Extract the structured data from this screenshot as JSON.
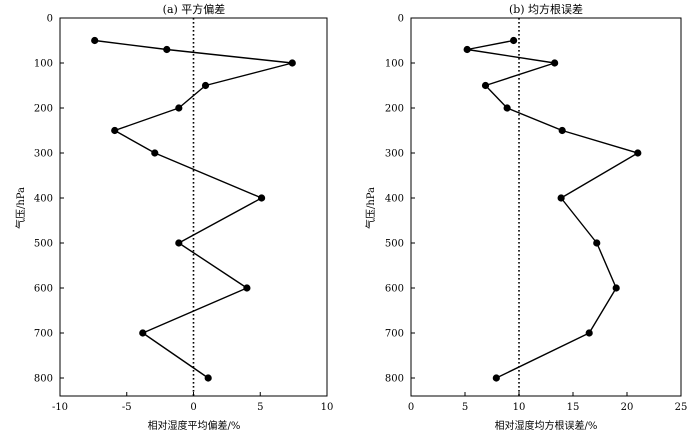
{
  "chart_data": [
    {
      "type": "line",
      "title": "(a) 平方偏差",
      "xlabel": "相对湿度平均偏差/%",
      "ylabel": "气压/hPa",
      "xlim": [
        -10,
        10
      ],
      "ylim": [
        0,
        840
      ],
      "y_inverted": true,
      "xticks": [
        -10,
        -5,
        0,
        5,
        10
      ],
      "yticks": [
        0,
        100,
        200,
        300,
        400,
        500,
        600,
        700,
        800
      ],
      "reference_line": {
        "x": 0,
        "style": "dotted"
      },
      "grid": false,
      "series": [
        {
          "marker": "circle",
          "color": "#000000",
          "points": [
            {
              "x": -7.4,
              "y": 50
            },
            {
              "x": -2.0,
              "y": 70
            },
            {
              "x": 7.4,
              "y": 100
            },
            {
              "x": 0.9,
              "y": 150
            },
            {
              "x": -1.1,
              "y": 200
            },
            {
              "x": -5.9,
              "y": 250
            },
            {
              "x": -2.9,
              "y": 300
            },
            {
              "x": 5.1,
              "y": 400
            },
            {
              "x": -1.1,
              "y": 500
            },
            {
              "x": 4.0,
              "y": 600
            },
            {
              "x": -3.8,
              "y": 700
            },
            {
              "x": 1.1,
              "y": 800
            }
          ]
        }
      ]
    },
    {
      "type": "line",
      "title": "(b) 均方根误差",
      "xlabel": "相对湿度均方根误差/%",
      "ylabel": "气压/hPa",
      "xlim": [
        0,
        25
      ],
      "ylim": [
        0,
        840
      ],
      "y_inverted": true,
      "xticks": [
        0,
        5,
        10,
        15,
        20,
        25
      ],
      "yticks": [
        0,
        100,
        200,
        300,
        400,
        500,
        600,
        700,
        800
      ],
      "reference_line": {
        "x": 10,
        "style": "dotted"
      },
      "grid": false,
      "series": [
        {
          "marker": "circle",
          "color": "#000000",
          "points": [
            {
              "x": 9.5,
              "y": 50
            },
            {
              "x": 5.2,
              "y": 70
            },
            {
              "x": 13.3,
              "y": 100
            },
            {
              "x": 6.9,
              "y": 150
            },
            {
              "x": 8.9,
              "y": 200
            },
            {
              "x": 14.0,
              "y": 250
            },
            {
              "x": 21.0,
              "y": 300
            },
            {
              "x": 13.9,
              "y": 400
            },
            {
              "x": 17.2,
              "y": 500
            },
            {
              "x": 19.0,
              "y": 600
            },
            {
              "x": 16.5,
              "y": 700
            },
            {
              "x": 7.9,
              "y": 800
            }
          ]
        }
      ]
    }
  ]
}
